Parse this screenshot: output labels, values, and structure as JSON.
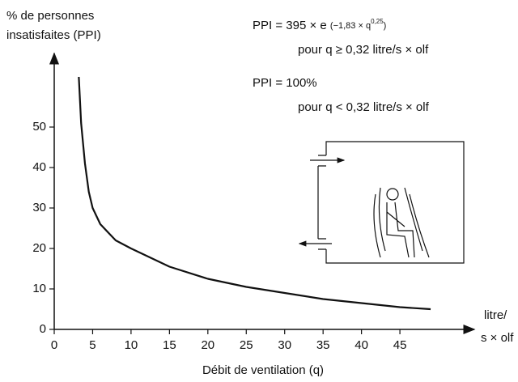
{
  "chart_data": {
    "type": "line",
    "y_label": [
      "% de personnes",
      "insatisfaites (PPI)"
    ],
    "x_label": "Débit de ventilation (q)",
    "x_unit": [
      "litre/",
      "s × olf"
    ],
    "annotations": [
      "PPI = 395 × e",
      "(−1,83 × q",
      "0,25",
      ")",
      "pour q ≥ 0,32 litre/s × olf",
      "PPI = 100%",
      "pour q < 0,32 litre/s × olf"
    ],
    "xlim": [
      0,
      54
    ],
    "ylim": [
      0,
      67
    ],
    "xticks": [
      0,
      5,
      10,
      15,
      20,
      25,
      30,
      35,
      40,
      45
    ],
    "yticks": [
      0,
      10,
      20,
      30,
      40,
      50
    ],
    "series": [
      {
        "color": "#111111",
        "x": [
          3.2,
          3.5,
          4,
          4.5,
          5,
          6,
          8,
          10,
          15,
          20,
          25,
          30,
          35,
          40,
          45,
          49
        ],
        "values": [
          62.4,
          51,
          41,
          34,
          30,
          26,
          22,
          20,
          15.5,
          12.5,
          10.5,
          9,
          7.5,
          6.5,
          5.5,
          5
        ]
      }
    ]
  }
}
